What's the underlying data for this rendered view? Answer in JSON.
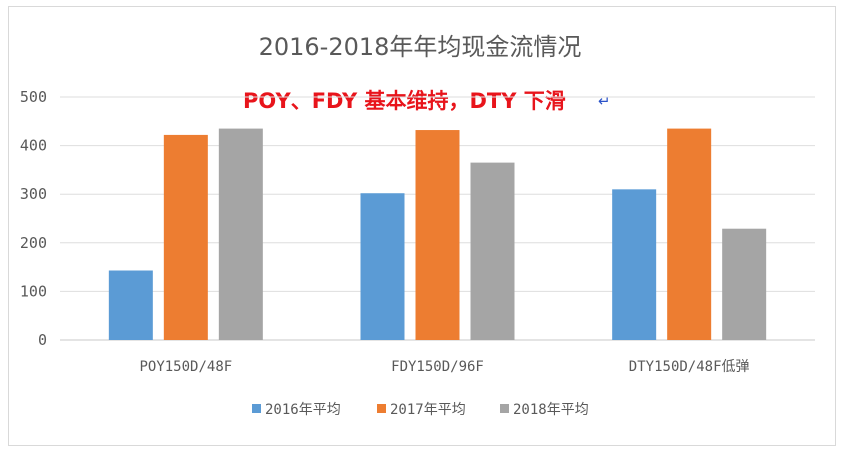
{
  "chart_data": {
    "type": "bar",
    "title": "2016-2018年年均现金流情况",
    "annotation": "POY、FDY 基本维持，DTY 下滑",
    "annotation_mark": "↵",
    "categories": [
      "POY150D/48F",
      "FDY150D/96F",
      "DTY150D/48F低弹"
    ],
    "series": [
      {
        "name": "2016年平均",
        "values": [
          143,
          302,
          310
        ],
        "color": "#5b9bd5"
      },
      {
        "name": "2017年平均",
        "values": [
          422,
          432,
          435
        ],
        "color": "#ed7d31"
      },
      {
        "name": "2018年平均",
        "values": [
          435,
          365,
          229
        ],
        "color": "#a5a5a5"
      }
    ],
    "yticks": [
      0,
      100,
      200,
      300,
      400,
      500
    ],
    "ylim": [
      0,
      500
    ],
    "grid": true,
    "legend_position": "bottom"
  }
}
